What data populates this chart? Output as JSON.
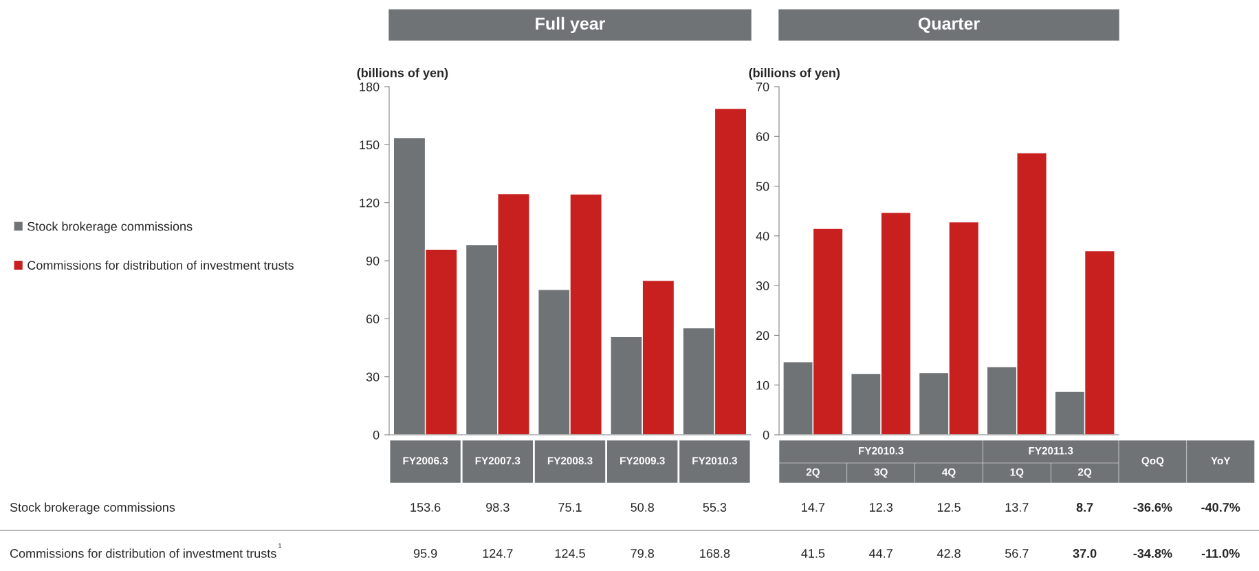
{
  "chart_data": [
    {
      "type": "bar",
      "title": "Full year",
      "ylabel": "(billions of yen)",
      "categories": [
        "FY2006.3",
        "FY2007.3",
        "FY2008.3",
        "FY2009.3",
        "FY2010.3"
      ],
      "series": [
        {
          "name": "Stock brokerage commissions",
          "color": "#707375",
          "values": [
            153.6,
            98.3,
            75.1,
            50.8,
            55.3
          ]
        },
        {
          "name": "Commissions for distribution of investment trusts",
          "color": "#c8201f",
          "values": [
            95.9,
            124.7,
            124.5,
            79.8,
            168.8
          ]
        }
      ],
      "ylim": [
        0,
        180
      ],
      "yticks": [
        0,
        30,
        60,
        90,
        120,
        150,
        180
      ],
      "data_labels": true,
      "legend": "left",
      "grid": false,
      "annotations": [
        "¹"
      ]
    },
    {
      "type": "bar",
      "title": "Quarter",
      "ylabel": "(billions of yen)",
      "categories": [
        "2Q",
        "3Q",
        "4Q",
        "1Q",
        "2Q"
      ],
      "series": [
        {
          "color": "#707375",
          "values": [
            14.7,
            12.3,
            12.5,
            13.7,
            8.7
          ],
          "value_labels": [
            "14.7",
            "12.3",
            "12.5",
            "13.7",
            "8.7"
          ]
        },
        {
          "color": "#c8201f",
          "values": [
            41.5,
            44.7,
            42.8,
            56.7,
            37.0
          ],
          "value_labels": [
            "41.5",
            "44.7",
            "42.8",
            "56.7",
            "37.0"
          ]
        }
      ],
      "ylim": [
        0,
        70
      ],
      "yticks": [
        0,
        10,
        20,
        30,
        40,
        50,
        60,
        70
      ],
      "grid": false,
      "annotations": [
        "FY2010.3",
        "FY2011.3",
        "QoQ",
        "YoY",
        "-36.6%",
        "-40.7%",
        "-34.8%",
        "-11.0%"
      ]
    }
  ]
}
